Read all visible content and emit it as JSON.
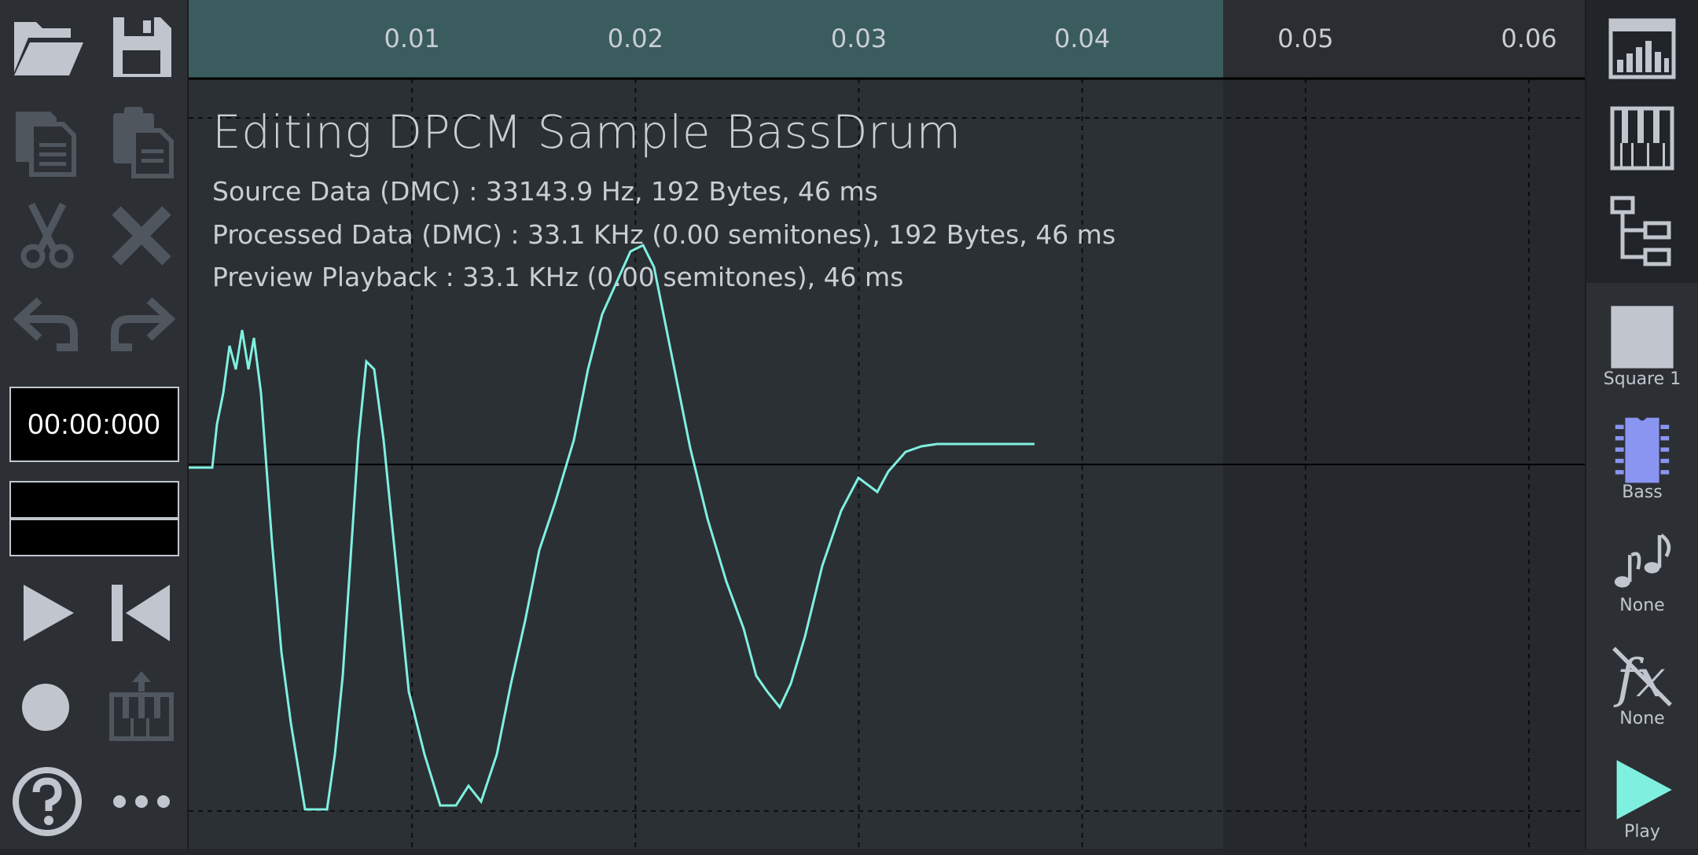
{
  "editor": {
    "title": "Editing DPCM Sample BassDrum",
    "source_line": "Source Data (DMC) : 33143.9 Hz, 192 Bytes, 46 ms",
    "processed_line": "Processed Data (DMC) : 33.1 KHz (0.00 semitones), 192 Bytes, 46 ms",
    "preview_line": "Preview Playback : 33.1 KHz (0.00 semitones), 46 ms",
    "ruler_ticks": [
      "0.01",
      "0.02",
      "0.03",
      "0.04",
      "0.05",
      "0.06"
    ],
    "sample_duration_s": 0.046,
    "view_range_s": [
      0,
      0.0625
    ],
    "waveform_color": "#7ff0e0",
    "ruler_selected_color": "#3a5c5e"
  },
  "left_toolbar": {
    "timer": "00:00:000",
    "buttons": [
      "open-icon",
      "save-icon",
      "copy-icon",
      "paste-icon",
      "cut-icon",
      "delete-icon",
      "undo-icon",
      "redo-icon",
      "play-icon",
      "rewind-icon",
      "record-icon",
      "piano-export-icon",
      "help-icon",
      "more-icon"
    ]
  },
  "right_toolbar": {
    "tabs": [
      "sequencer-icon",
      "piano-roll-icon",
      "project-explorer-icon"
    ],
    "channel_label": "Square 1",
    "instrument_label": "Bass",
    "arpeggio_label": "None",
    "effect_label": "None",
    "play_label": "Play"
  }
}
